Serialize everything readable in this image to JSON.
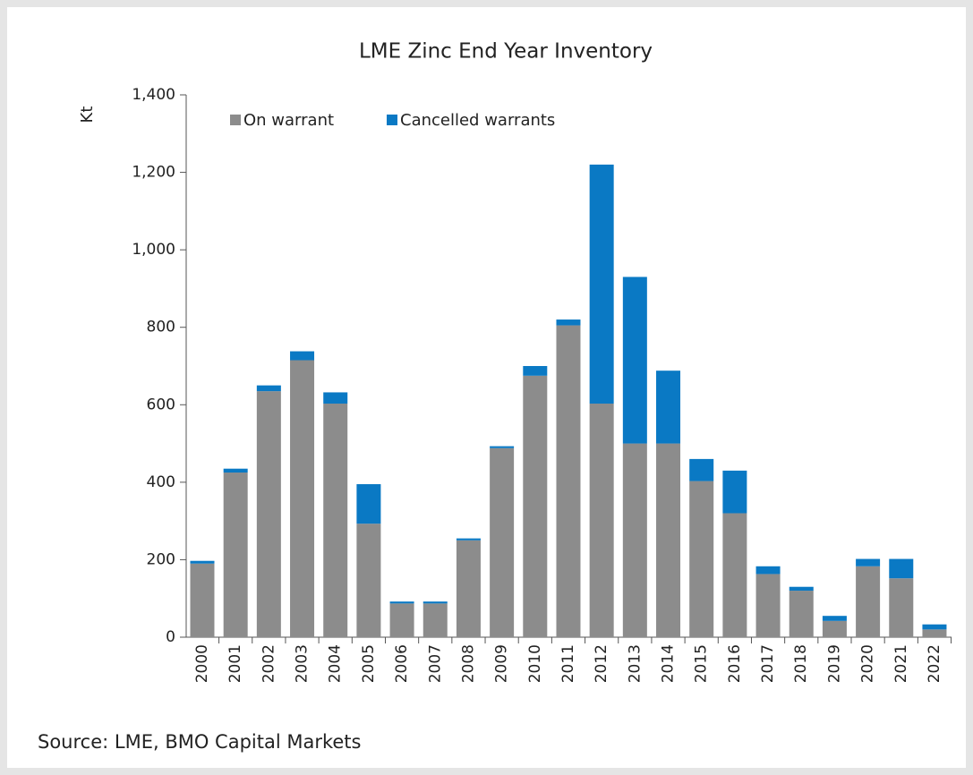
{
  "chart_data": {
    "type": "stacked_bar",
    "title": "LME Zinc End Year Inventory",
    "y_label": "Kt",
    "source": "Source: LME, BMO Capital Markets",
    "categories": [
      "2000",
      "2001",
      "2002",
      "2003",
      "2004",
      "2005",
      "2006",
      "2007",
      "2008",
      "2009",
      "2010",
      "2011",
      "2012",
      "2013",
      "2014",
      "2015",
      "2016",
      "2017",
      "2018",
      "2019",
      "2020",
      "2021",
      "2022"
    ],
    "series": [
      {
        "name": "On warrant",
        "color": "#8c8c8c",
        "values": [
          190,
          425,
          635,
          715,
          603,
          293,
          87,
          87,
          250,
          488,
          675,
          805,
          603,
          500,
          500,
          403,
          320,
          163,
          120,
          42,
          183,
          152,
          20
        ]
      },
      {
        "name": "Cancelled warrants",
        "color": "#0a79c4",
        "values": [
          7,
          10,
          15,
          23,
          29,
          102,
          5,
          5,
          5,
          5,
          25,
          15,
          617,
          430,
          188,
          57,
          110,
          20,
          10,
          13,
          19,
          50,
          13
        ]
      }
    ],
    "ylim": [
      0,
      1400
    ],
    "yticks": [
      0,
      200,
      400,
      600,
      800,
      {
        "value": 1000,
        "label": "1,000"
      },
      {
        "value": 1200,
        "label": "1,200"
      },
      {
        "value": 1400,
        "label": "1,400"
      }
    ],
    "legend": "top-left"
  }
}
